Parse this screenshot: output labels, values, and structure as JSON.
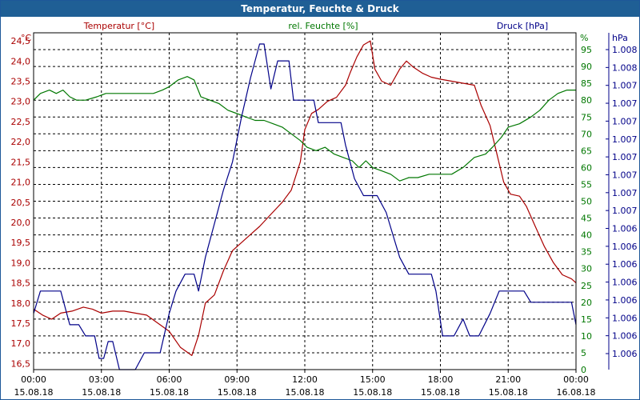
{
  "title": "Temperatur, Feuchte & Druck",
  "chart_data": {
    "type": "line",
    "title": "Temperatur, Feuchte & Druck",
    "x_ticks": [
      {
        "time": "00:00",
        "date": "15.08.18"
      },
      {
        "time": "03:00",
        "date": "15.08.18"
      },
      {
        "time": "06:00",
        "date": "15.08.18"
      },
      {
        "time": "09:00",
        "date": "15.08.18"
      },
      {
        "time": "12:00",
        "date": "15.08.18"
      },
      {
        "time": "15:00",
        "date": "15.08.18"
      },
      {
        "time": "18:00",
        "date": "15.08.18"
      },
      {
        "time": "21:00",
        "date": "15.08.18"
      },
      {
        "time": "00:00",
        "date": "16.08.18"
      }
    ],
    "xlim": [
      0,
      24
    ],
    "grid": true,
    "axes": {
      "temperature": {
        "label": "Temperatur [°C]",
        "unit": "°C",
        "color": "#aa0000",
        "side": "left",
        "ylim": [
          16.35,
          24.7
        ],
        "ticks": [
          "16,5",
          "17,0",
          "17,5",
          "18,0",
          "18,5",
          "19,0",
          "19,5",
          "20,0",
          "20,5",
          "21,0",
          "21,5",
          "22,0",
          "22,5",
          "23,0",
          "23,5",
          "24,0",
          "24,5"
        ]
      },
      "humidity": {
        "label": "rel. Feuchte [%]",
        "unit": "%",
        "color": "#007700",
        "side": "right",
        "ylim": [
          0,
          100
        ],
        "ticks": [
          "0",
          "5",
          "10",
          "15",
          "20",
          "25",
          "30",
          "35",
          "40",
          "45",
          "50",
          "55",
          "60",
          "65",
          "70",
          "75",
          "80",
          "85",
          "90",
          "95"
        ]
      },
      "pressure": {
        "label": "Druck [hPa]",
        "unit": "hPa",
        "color": "#000088",
        "side": "right-outer",
        "ylim": [
          1005.5,
          1008.5
        ],
        "ticks": [
          "1.006",
          "1.006",
          "1.006",
          "1.006",
          "1.006",
          "1.006",
          "1.006",
          "1.006",
          "1.007",
          "1.007",
          "1.007",
          "1.007",
          "1.007",
          "1.007",
          "1.007",
          "1.007",
          "1.008",
          "1.008"
        ]
      }
    },
    "series": [
      {
        "name": "Temperatur [°C]",
        "axis": "temperature",
        "color": "#aa0000",
        "points": [
          [
            0,
            17.85
          ],
          [
            0.4,
            17.7
          ],
          [
            0.8,
            17.6
          ],
          [
            1.2,
            17.75
          ],
          [
            1.7,
            17.8
          ],
          [
            2.2,
            17.9
          ],
          [
            2.6,
            17.85
          ],
          [
            3.0,
            17.75
          ],
          [
            3.5,
            17.8
          ],
          [
            4.0,
            17.8
          ],
          [
            4.5,
            17.75
          ],
          [
            5.0,
            17.7
          ],
          [
            5.5,
            17.5
          ],
          [
            6.0,
            17.3
          ],
          [
            6.5,
            16.9
          ],
          [
            7.0,
            16.7
          ],
          [
            7.3,
            17.2
          ],
          [
            7.6,
            18.0
          ],
          [
            8.0,
            18.2
          ],
          [
            8.4,
            18.8
          ],
          [
            8.8,
            19.3
          ],
          [
            9.2,
            19.5
          ],
          [
            9.6,
            19.7
          ],
          [
            10.0,
            19.9
          ],
          [
            10.5,
            20.2
          ],
          [
            11.0,
            20.5
          ],
          [
            11.4,
            20.8
          ],
          [
            11.8,
            21.5
          ],
          [
            12.0,
            22.3
          ],
          [
            12.3,
            22.7
          ],
          [
            12.6,
            22.8
          ],
          [
            13.0,
            23.0
          ],
          [
            13.4,
            23.1
          ],
          [
            13.8,
            23.4
          ],
          [
            14.0,
            23.7
          ],
          [
            14.3,
            24.1
          ],
          [
            14.6,
            24.4
          ],
          [
            14.9,
            24.5
          ],
          [
            15.1,
            23.8
          ],
          [
            15.4,
            23.5
          ],
          [
            15.8,
            23.4
          ],
          [
            16.2,
            23.8
          ],
          [
            16.5,
            24.0
          ],
          [
            16.8,
            23.85
          ],
          [
            17.2,
            23.7
          ],
          [
            17.6,
            23.6
          ],
          [
            18.0,
            23.55
          ],
          [
            18.5,
            23.5
          ],
          [
            19.0,
            23.45
          ],
          [
            19.5,
            23.4
          ],
          [
            19.8,
            22.9
          ],
          [
            20.2,
            22.4
          ],
          [
            20.5,
            21.7
          ],
          [
            20.8,
            21.0
          ],
          [
            21.1,
            20.7
          ],
          [
            21.5,
            20.65
          ],
          [
            21.8,
            20.4
          ],
          [
            22.2,
            19.9
          ],
          [
            22.6,
            19.4
          ],
          [
            23.0,
            19.0
          ],
          [
            23.4,
            18.7
          ],
          [
            23.8,
            18.6
          ],
          [
            24.0,
            18.5
          ]
        ]
      },
      {
        "name": "rel. Feuchte [%]",
        "axis": "humidity",
        "color": "#007700",
        "points": [
          [
            0,
            80
          ],
          [
            0.3,
            82
          ],
          [
            0.7,
            83
          ],
          [
            1.0,
            82
          ],
          [
            1.3,
            83
          ],
          [
            1.6,
            81
          ],
          [
            1.9,
            80
          ],
          [
            2.3,
            80
          ],
          [
            2.8,
            81
          ],
          [
            3.2,
            82
          ],
          [
            3.7,
            82
          ],
          [
            4.2,
            82
          ],
          [
            4.8,
            82
          ],
          [
            5.3,
            82
          ],
          [
            5.7,
            83
          ],
          [
            6.0,
            84
          ],
          [
            6.4,
            86
          ],
          [
            6.8,
            87
          ],
          [
            7.1,
            86
          ],
          [
            7.4,
            81
          ],
          [
            7.8,
            80
          ],
          [
            8.2,
            79
          ],
          [
            8.6,
            77
          ],
          [
            9.0,
            76
          ],
          [
            9.4,
            75
          ],
          [
            9.8,
            74
          ],
          [
            10.2,
            74
          ],
          [
            10.6,
            73
          ],
          [
            11.0,
            72
          ],
          [
            11.4,
            70
          ],
          [
            11.8,
            68
          ],
          [
            12.1,
            66
          ],
          [
            12.5,
            65
          ],
          [
            12.9,
            66
          ],
          [
            13.3,
            64
          ],
          [
            13.7,
            63
          ],
          [
            14.1,
            62
          ],
          [
            14.4,
            60
          ],
          [
            14.7,
            62
          ],
          [
            15.0,
            60
          ],
          [
            15.4,
            59
          ],
          [
            15.8,
            58
          ],
          [
            16.2,
            56
          ],
          [
            16.6,
            57
          ],
          [
            17.0,
            57
          ],
          [
            17.5,
            58
          ],
          [
            18.0,
            58
          ],
          [
            18.5,
            58
          ],
          [
            19.0,
            60
          ],
          [
            19.5,
            63
          ],
          [
            20.0,
            64
          ],
          [
            20.3,
            66
          ],
          [
            20.7,
            69
          ],
          [
            21.0,
            72
          ],
          [
            21.5,
            73
          ],
          [
            22.0,
            75
          ],
          [
            22.4,
            77
          ],
          [
            22.8,
            80
          ],
          [
            23.2,
            82
          ],
          [
            23.6,
            83
          ],
          [
            24.0,
            83
          ]
        ]
      },
      {
        "name": "Druck [hPa]",
        "axis": "pressure",
        "color": "#000088",
        "points": [
          [
            0,
            1006.0
          ],
          [
            0.3,
            1006.2
          ],
          [
            1.2,
            1006.2
          ],
          [
            1.6,
            1005.9
          ],
          [
            2.0,
            1005.9
          ],
          [
            2.3,
            1005.8
          ],
          [
            2.7,
            1005.8
          ],
          [
            2.9,
            1005.6
          ],
          [
            3.1,
            1005.6
          ],
          [
            3.3,
            1005.75
          ],
          [
            3.5,
            1005.75
          ],
          [
            3.8,
            1005.5
          ],
          [
            4.5,
            1005.5
          ],
          [
            4.9,
            1005.65
          ],
          [
            5.6,
            1005.65
          ],
          [
            6.0,
            1006.0
          ],
          [
            6.3,
            1006.2
          ],
          [
            6.7,
            1006.35
          ],
          [
            7.1,
            1006.35
          ],
          [
            7.3,
            1006.2
          ],
          [
            7.6,
            1006.5
          ],
          [
            8.0,
            1006.8
          ],
          [
            8.4,
            1007.1
          ],
          [
            8.8,
            1007.35
          ],
          [
            9.2,
            1007.75
          ],
          [
            9.6,
            1008.1
          ],
          [
            10.0,
            1008.4
          ],
          [
            10.2,
            1008.4
          ],
          [
            10.5,
            1008.0
          ],
          [
            10.8,
            1008.25
          ],
          [
            11.3,
            1008.25
          ],
          [
            11.5,
            1007.9
          ],
          [
            12.4,
            1007.9
          ],
          [
            12.6,
            1007.7
          ],
          [
            13.6,
            1007.7
          ],
          [
            13.8,
            1007.5
          ],
          [
            14.2,
            1007.2
          ],
          [
            14.6,
            1007.05
          ],
          [
            15.2,
            1007.05
          ],
          [
            15.6,
            1006.9
          ],
          [
            16.2,
            1006.5
          ],
          [
            16.6,
            1006.35
          ],
          [
            17.6,
            1006.35
          ],
          [
            17.8,
            1006.2
          ],
          [
            18.1,
            1005.8
          ],
          [
            18.6,
            1005.8
          ],
          [
            19.0,
            1005.95
          ],
          [
            19.3,
            1005.8
          ],
          [
            19.7,
            1005.8
          ],
          [
            20.2,
            1006.0
          ],
          [
            20.6,
            1006.2
          ],
          [
            21.7,
            1006.2
          ],
          [
            22.0,
            1006.1
          ],
          [
            23.8,
            1006.1
          ],
          [
            24.0,
            1005.9
          ]
        ]
      }
    ]
  }
}
